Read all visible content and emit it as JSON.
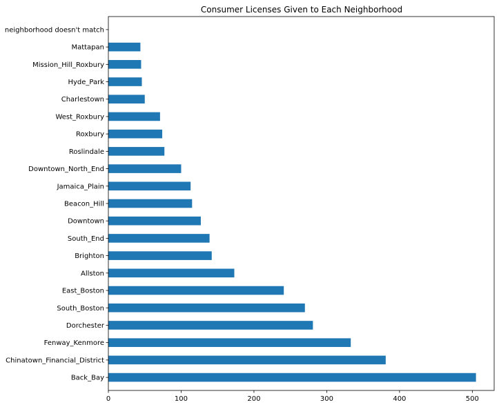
{
  "chart_data": {
    "type": "bar",
    "orientation": "horizontal",
    "title": "Consumer Licenses Given to Each Neighborhood",
    "xlabel": "",
    "ylabel": "",
    "categories": [
      "Back_Bay",
      "Chinatown_Financial_District",
      "Fenway_Kenmore",
      "Dorchester",
      "South_Boston",
      "East_Boston",
      "Allston",
      "Brighton",
      "South_End",
      "Downtown",
      "Beacon_Hill",
      "Jamaica_Plain",
      "Downtown_North_End",
      "Roslindale",
      "Roxbury",
      "West_Roxbury",
      "Charlestown",
      "Hyde_Park",
      "Mission_Hill_Roxbury",
      "Mattapan",
      "neighborhood doesn't match"
    ],
    "values": [
      505,
      381,
      333,
      281,
      270,
      241,
      173,
      142,
      139,
      127,
      115,
      113,
      100,
      77,
      74,
      71,
      50,
      46,
      45,
      44,
      0
    ],
    "xlim": [
      0,
      530
    ],
    "xticks": [
      0,
      100,
      200,
      300,
      400,
      500
    ],
    "grid": false,
    "legend": "none",
    "bar_color": "#1f77b4"
  }
}
